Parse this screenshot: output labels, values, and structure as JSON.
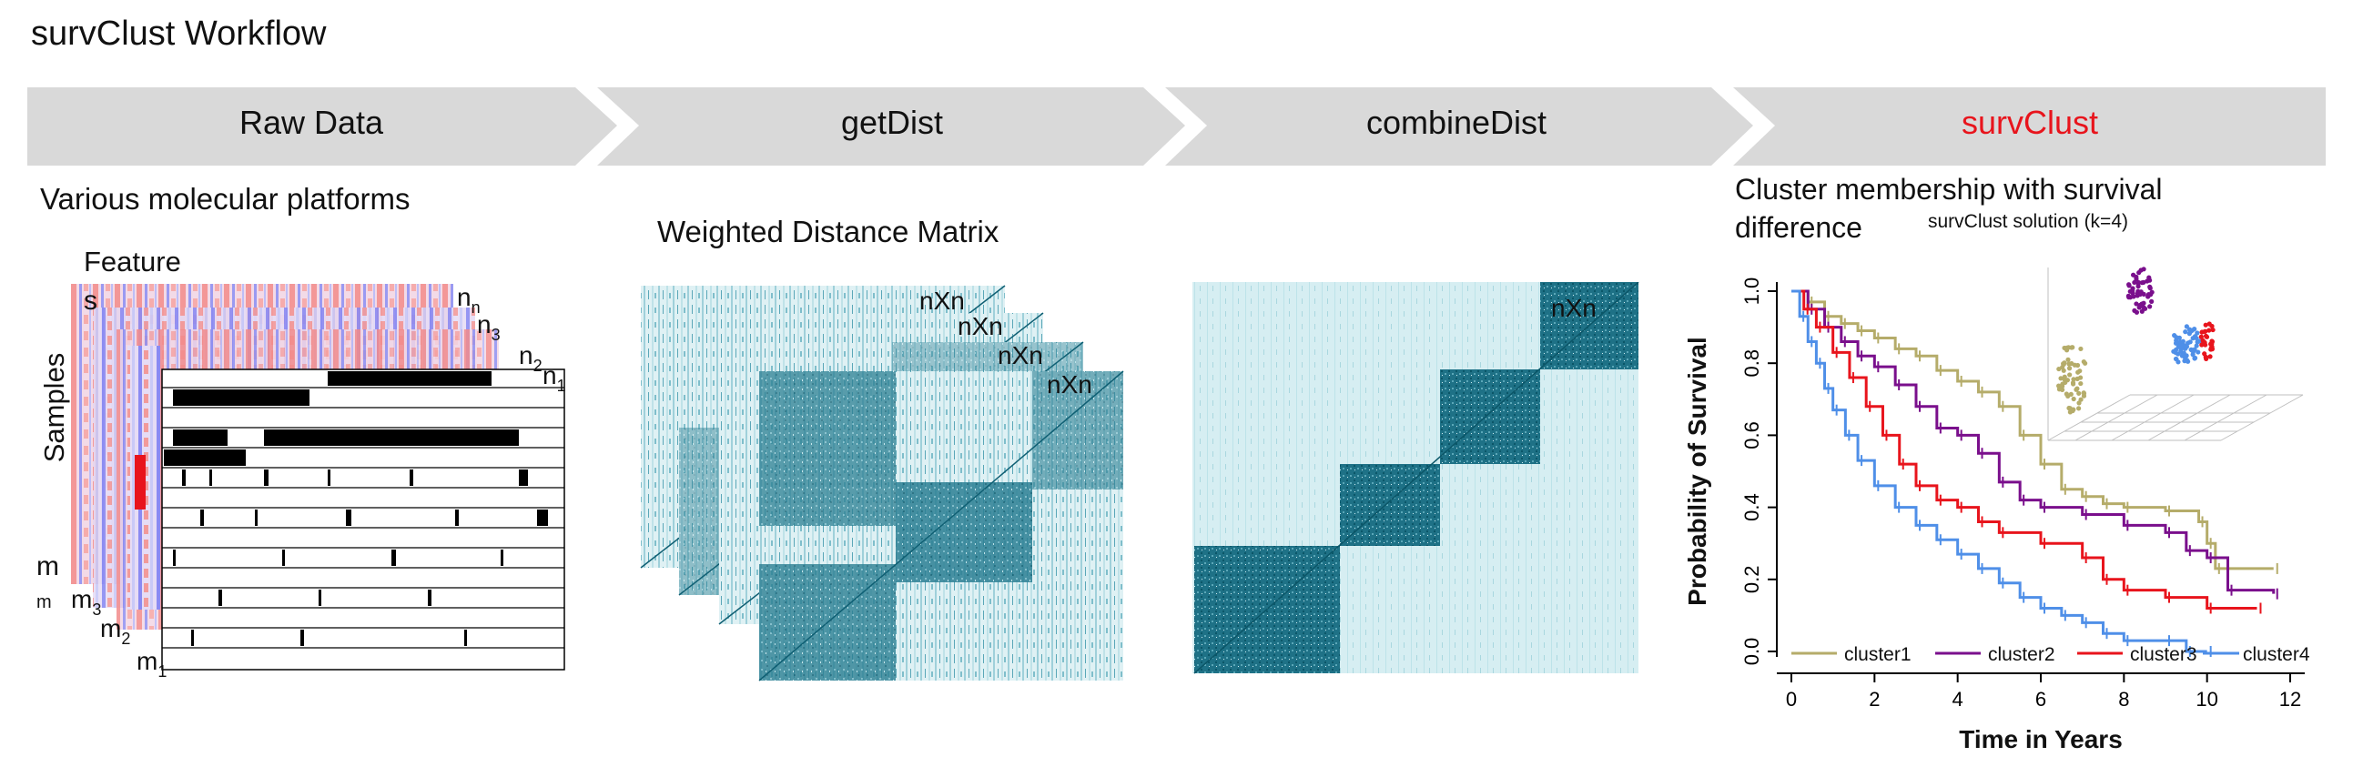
{
  "title": "survClust Workflow",
  "stages": [
    {
      "label": "Raw Data",
      "color": "#111111"
    },
    {
      "label": "getDist",
      "color": "#111111"
    },
    {
      "label": "combineDist",
      "color": "#111111"
    },
    {
      "label": "survClust",
      "color": "#e8141c"
    }
  ],
  "raw_data": {
    "subtitle": "Various molecular platforms",
    "feature_label": "Feature",
    "samples_label": "Samples",
    "s_label": "s",
    "m_label": "m",
    "n_labels": [
      {
        "base": "n",
        "sub": "n"
      },
      {
        "base": "n",
        "sub": "3"
      },
      {
        "base": "n",
        "sub": "2"
      },
      {
        "base": "n",
        "sub": "1"
      }
    ],
    "m_labels": [
      {
        "base": "m",
        "sub": ""
      },
      {
        "base": "m",
        "sub": "3"
      },
      {
        "base": "m",
        "sub": "2"
      },
      {
        "base": "m",
        "sub": "1"
      }
    ]
  },
  "getdist": {
    "subtitle": "Weighted Distance Matrix",
    "matrix_labels": [
      "nXn",
      "nXn",
      "nXn",
      "nXn"
    ]
  },
  "combinedist": {
    "matrix_label": "nXn"
  },
  "survclust": {
    "subtitle_line1": "Cluster membership with survival",
    "subtitle_line2": "difference",
    "inset_title": "survClust solution (k=4)"
  },
  "chart_data": {
    "type": "line",
    "title": "",
    "xlabel": "Time in Years",
    "ylabel": "Probability of Survival",
    "xlim": [
      0,
      12
    ],
    "ylim": [
      0,
      1
    ],
    "x_ticks": [
      "0",
      "2",
      "4",
      "6",
      "8",
      "10",
      "12"
    ],
    "y_ticks": [
      "0.0",
      "0.2",
      "0.4",
      "0.6",
      "0.8",
      "1.0"
    ],
    "legend_placement": "bottom",
    "series": [
      {
        "name": "cluster1",
        "color": "#b5ac6a",
        "points": [
          [
            0,
            1.0
          ],
          [
            0.4,
            0.97
          ],
          [
            0.8,
            0.93
          ],
          [
            1.2,
            0.91
          ],
          [
            1.6,
            0.89
          ],
          [
            2.0,
            0.87
          ],
          [
            2.5,
            0.84
          ],
          [
            3.0,
            0.82
          ],
          [
            3.5,
            0.78
          ],
          [
            4.0,
            0.75
          ],
          [
            4.5,
            0.72
          ],
          [
            5.0,
            0.68
          ],
          [
            5.5,
            0.6
          ],
          [
            6.0,
            0.52
          ],
          [
            6.5,
            0.45
          ],
          [
            7.0,
            0.43
          ],
          [
            7.5,
            0.41
          ],
          [
            8.0,
            0.4
          ],
          [
            9.0,
            0.39
          ],
          [
            9.8,
            0.36
          ],
          [
            10.0,
            0.3
          ],
          [
            10.2,
            0.23
          ],
          [
            11.6,
            0.23
          ]
        ]
      },
      {
        "name": "cluster2",
        "color": "#7a0f8c",
        "points": [
          [
            0,
            1.0
          ],
          [
            0.4,
            0.95
          ],
          [
            0.8,
            0.9
          ],
          [
            1.2,
            0.86
          ],
          [
            1.6,
            0.82
          ],
          [
            2.0,
            0.79
          ],
          [
            2.5,
            0.74
          ],
          [
            3.0,
            0.68
          ],
          [
            3.5,
            0.62
          ],
          [
            4.0,
            0.6
          ],
          [
            4.5,
            0.55
          ],
          [
            5.0,
            0.47
          ],
          [
            5.5,
            0.42
          ],
          [
            6.0,
            0.4
          ],
          [
            7.0,
            0.38
          ],
          [
            8.0,
            0.35
          ],
          [
            9.0,
            0.33
          ],
          [
            9.5,
            0.28
          ],
          [
            10.0,
            0.26
          ],
          [
            10.5,
            0.17
          ],
          [
            11.6,
            0.16
          ]
        ]
      },
      {
        "name": "cluster3",
        "color": "#e8141c",
        "points": [
          [
            0,
            1.0
          ],
          [
            0.3,
            0.95
          ],
          [
            0.6,
            0.9
          ],
          [
            1.0,
            0.83
          ],
          [
            1.4,
            0.76
          ],
          [
            1.8,
            0.68
          ],
          [
            2.2,
            0.6
          ],
          [
            2.6,
            0.52
          ],
          [
            3.0,
            0.46
          ],
          [
            3.5,
            0.42
          ],
          [
            4.0,
            0.4
          ],
          [
            4.5,
            0.36
          ],
          [
            5.0,
            0.33
          ],
          [
            6.0,
            0.3
          ],
          [
            7.0,
            0.26
          ],
          [
            7.5,
            0.2
          ],
          [
            8.0,
            0.17
          ],
          [
            9.0,
            0.15
          ],
          [
            10.0,
            0.12
          ],
          [
            11.2,
            0.12
          ]
        ]
      },
      {
        "name": "cluster4",
        "color": "#4f8fe8",
        "points": [
          [
            0,
            1.0
          ],
          [
            0.2,
            0.93
          ],
          [
            0.4,
            0.86
          ],
          [
            0.6,
            0.8
          ],
          [
            0.8,
            0.73
          ],
          [
            1.0,
            0.67
          ],
          [
            1.3,
            0.6
          ],
          [
            1.6,
            0.53
          ],
          [
            2.0,
            0.46
          ],
          [
            2.5,
            0.4
          ],
          [
            3.0,
            0.35
          ],
          [
            3.5,
            0.31
          ],
          [
            4.0,
            0.27
          ],
          [
            4.5,
            0.23
          ],
          [
            5.0,
            0.19
          ],
          [
            5.5,
            0.15
          ],
          [
            6.0,
            0.12
          ],
          [
            6.5,
            0.1
          ],
          [
            7.0,
            0.08
          ],
          [
            7.5,
            0.05
          ],
          [
            8.0,
            0.03
          ],
          [
            9.0,
            0.03
          ],
          [
            9.5,
            0.0
          ],
          [
            10.0,
            0.0
          ]
        ]
      }
    ]
  }
}
